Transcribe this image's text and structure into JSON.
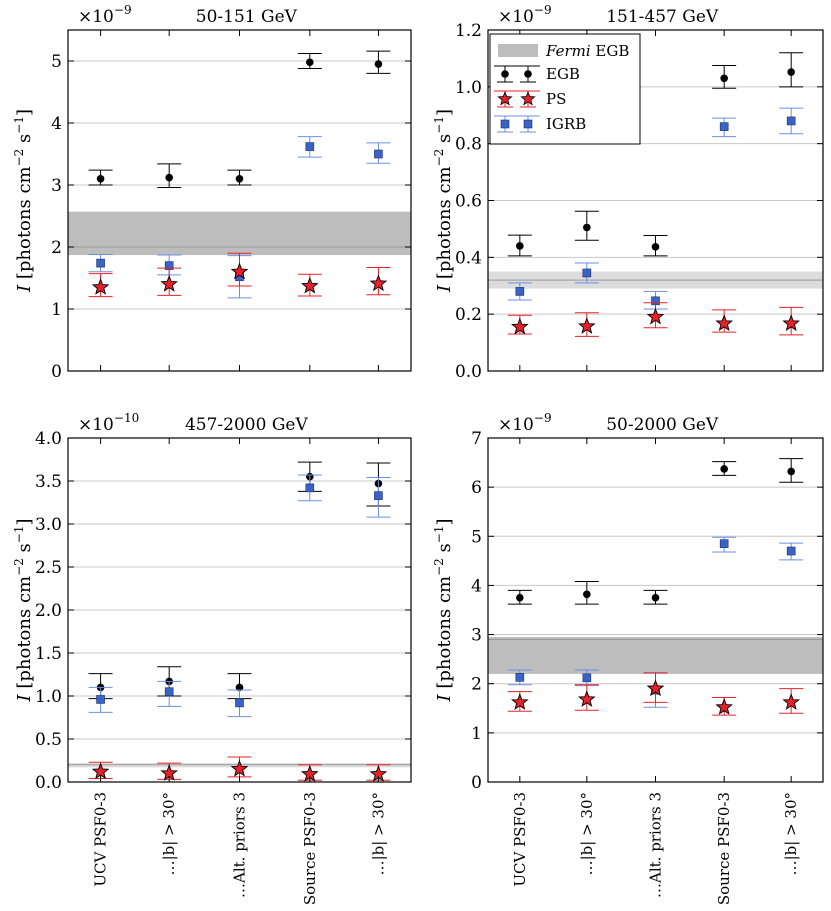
{
  "colors": {
    "egb": "#000000",
    "ps_fill": "#e8202a",
    "ps_err": "#e8202a",
    "igrb_fill": "#3b63c7",
    "igrb_err": "#6b8fe0",
    "band_dark": "#bdbdbd",
    "band_light": "#dcdcdc",
    "grid": "#c8c8c8"
  },
  "ylabel_parts": {
    "italic": "I",
    "text": " [photons cm",
    "exp1": "−2",
    "mid": " s",
    "exp2": "−1",
    "end": "]"
  },
  "categories": [
    "UCV PSF0-3",
    "…|b| > 30°",
    "…Alt. priors 3",
    "Source PSF0-3",
    "…|b| > 30°"
  ],
  "legend": {
    "fermi_italic": "Fermi",
    "fermi_rest": " EGB",
    "egb": "EGB",
    "ps": "PS",
    "igrb": "IGRB"
  },
  "chart_data": [
    {
      "type": "scatter",
      "title": "50-151 GeV",
      "scale_label": "×10",
      "scale_exp": "−9",
      "ylim": [
        0,
        5.5
      ],
      "yticks": [
        0,
        1,
        2,
        3,
        4,
        5
      ],
      "tick_labels": [
        "0",
        "1",
        "2",
        "3",
        "4",
        "5"
      ],
      "fermi_band": [
        1.87,
        2.57
      ],
      "fermi_line": 2.0,
      "series": [
        {
          "name": "EGB",
          "marker": "circle",
          "values": [
            3.1,
            3.12,
            3.1,
            4.98,
            4.95
          ],
          "lo": [
            3.0,
            2.96,
            3.0,
            4.88,
            4.8
          ],
          "hi": [
            3.24,
            3.34,
            3.24,
            5.12,
            5.16
          ]
        },
        {
          "name": "IGRB",
          "marker": "square",
          "values": [
            1.74,
            1.7,
            1.52,
            3.62,
            3.5
          ],
          "lo": [
            1.6,
            1.55,
            1.18,
            3.45,
            3.35
          ],
          "hi": [
            1.88,
            1.87,
            1.86,
            3.78,
            3.68
          ]
        },
        {
          "name": "PS",
          "marker": "star",
          "values": [
            1.35,
            1.4,
            1.6,
            1.37,
            1.41
          ],
          "lo": [
            1.2,
            1.22,
            1.37,
            1.21,
            1.23
          ],
          "hi": [
            1.57,
            1.66,
            1.9,
            1.56,
            1.67
          ]
        }
      ]
    },
    {
      "type": "scatter",
      "title": "151-457 GeV",
      "scale_label": "×10",
      "scale_exp": "−9",
      "ylim": [
        0,
        1.2
      ],
      "yticks": [
        0,
        0.2,
        0.4,
        0.6,
        0.8,
        1.0,
        1.2
      ],
      "tick_labels": [
        "0.0",
        "0.2",
        "0.4",
        "0.6",
        "0.8",
        "1.0",
        "1.2"
      ],
      "fermi_band": [
        0.29,
        0.35
      ],
      "fermi_line": 0.32,
      "series": [
        {
          "name": "EGB",
          "marker": "circle",
          "values": [
            0.44,
            0.505,
            0.437,
            1.03,
            1.052
          ],
          "lo": [
            0.405,
            0.46,
            0.405,
            0.995,
            1.0
          ],
          "hi": [
            0.478,
            0.562,
            0.477,
            1.075,
            1.12
          ]
        },
        {
          "name": "IGRB",
          "marker": "square",
          "values": [
            0.28,
            0.345,
            0.247,
            0.86,
            0.88
          ],
          "lo": [
            0.25,
            0.31,
            0.218,
            0.825,
            0.835
          ],
          "hi": [
            0.31,
            0.38,
            0.28,
            0.89,
            0.925
          ]
        },
        {
          "name": "PS",
          "marker": "star",
          "values": [
            0.155,
            0.157,
            0.19,
            0.167,
            0.167
          ],
          "lo": [
            0.13,
            0.122,
            0.152,
            0.137,
            0.127
          ],
          "hi": [
            0.196,
            0.205,
            0.24,
            0.215,
            0.224
          ]
        }
      ]
    },
    {
      "type": "scatter",
      "title": "457-2000 GeV",
      "scale_label": "×10",
      "scale_exp": "−10",
      "ylim": [
        0,
        4.0
      ],
      "yticks": [
        0,
        0.5,
        1.0,
        1.5,
        2.0,
        2.5,
        3.0,
        3.5,
        4.0
      ],
      "tick_labels": [
        "0.0",
        "0.5",
        "1.0",
        "1.5",
        "2.0",
        "2.5",
        "3.0",
        "3.5",
        "4.0"
      ],
      "fermi_band": [
        0.17,
        0.22
      ],
      "fermi_line": 0.2,
      "series": [
        {
          "name": "EGB",
          "marker": "circle",
          "values": [
            1.1,
            1.17,
            1.1,
            3.55,
            3.47
          ],
          "lo": [
            0.97,
            1.0,
            0.97,
            3.38,
            3.21
          ],
          "hi": [
            1.26,
            1.34,
            1.26,
            3.72,
            3.71
          ]
        },
        {
          "name": "IGRB",
          "marker": "square",
          "values": [
            0.96,
            1.05,
            0.92,
            3.42,
            3.33
          ],
          "lo": [
            0.81,
            0.88,
            0.76,
            3.27,
            3.08
          ],
          "hi": [
            1.1,
            1.17,
            1.07,
            3.57,
            3.54
          ]
        },
        {
          "name": "PS",
          "marker": "star",
          "values": [
            0.12,
            0.1,
            0.15,
            0.09,
            0.09
          ],
          "lo": [
            0.04,
            0.03,
            0.06,
            0.02,
            0.02
          ],
          "hi": [
            0.23,
            0.22,
            0.29,
            0.2,
            0.2
          ]
        }
      ]
    },
    {
      "type": "scatter",
      "title": "50-2000 GeV",
      "scale_label": "×10",
      "scale_exp": "−9",
      "ylim": [
        0,
        7
      ],
      "yticks": [
        0,
        1,
        2,
        3,
        4,
        5,
        6,
        7
      ],
      "tick_labels": [
        "0",
        "1",
        "2",
        "3",
        "4",
        "5",
        "6",
        "7"
      ],
      "fermi_band": [
        2.2,
        2.95
      ],
      "fermi_line": 2.9,
      "series": [
        {
          "name": "EGB",
          "marker": "circle",
          "values": [
            3.75,
            3.82,
            3.75,
            6.37,
            6.32
          ],
          "lo": [
            3.62,
            3.62,
            3.62,
            6.24,
            6.1
          ],
          "hi": [
            3.9,
            4.08,
            3.9,
            6.52,
            6.58
          ]
        },
        {
          "name": "IGRB",
          "marker": "square",
          "values": [
            2.13,
            2.12,
            1.87,
            4.85,
            4.7
          ],
          "lo": [
            1.98,
            1.96,
            1.52,
            4.68,
            4.52
          ],
          "hi": [
            2.28,
            2.28,
            2.22,
            4.98,
            4.86
          ]
        },
        {
          "name": "PS",
          "marker": "star",
          "values": [
            1.62,
            1.68,
            1.9,
            1.52,
            1.62
          ],
          "lo": [
            1.44,
            1.46,
            1.62,
            1.36,
            1.4
          ],
          "hi": [
            1.84,
            1.98,
            2.22,
            1.72,
            1.9
          ]
        }
      ]
    }
  ]
}
